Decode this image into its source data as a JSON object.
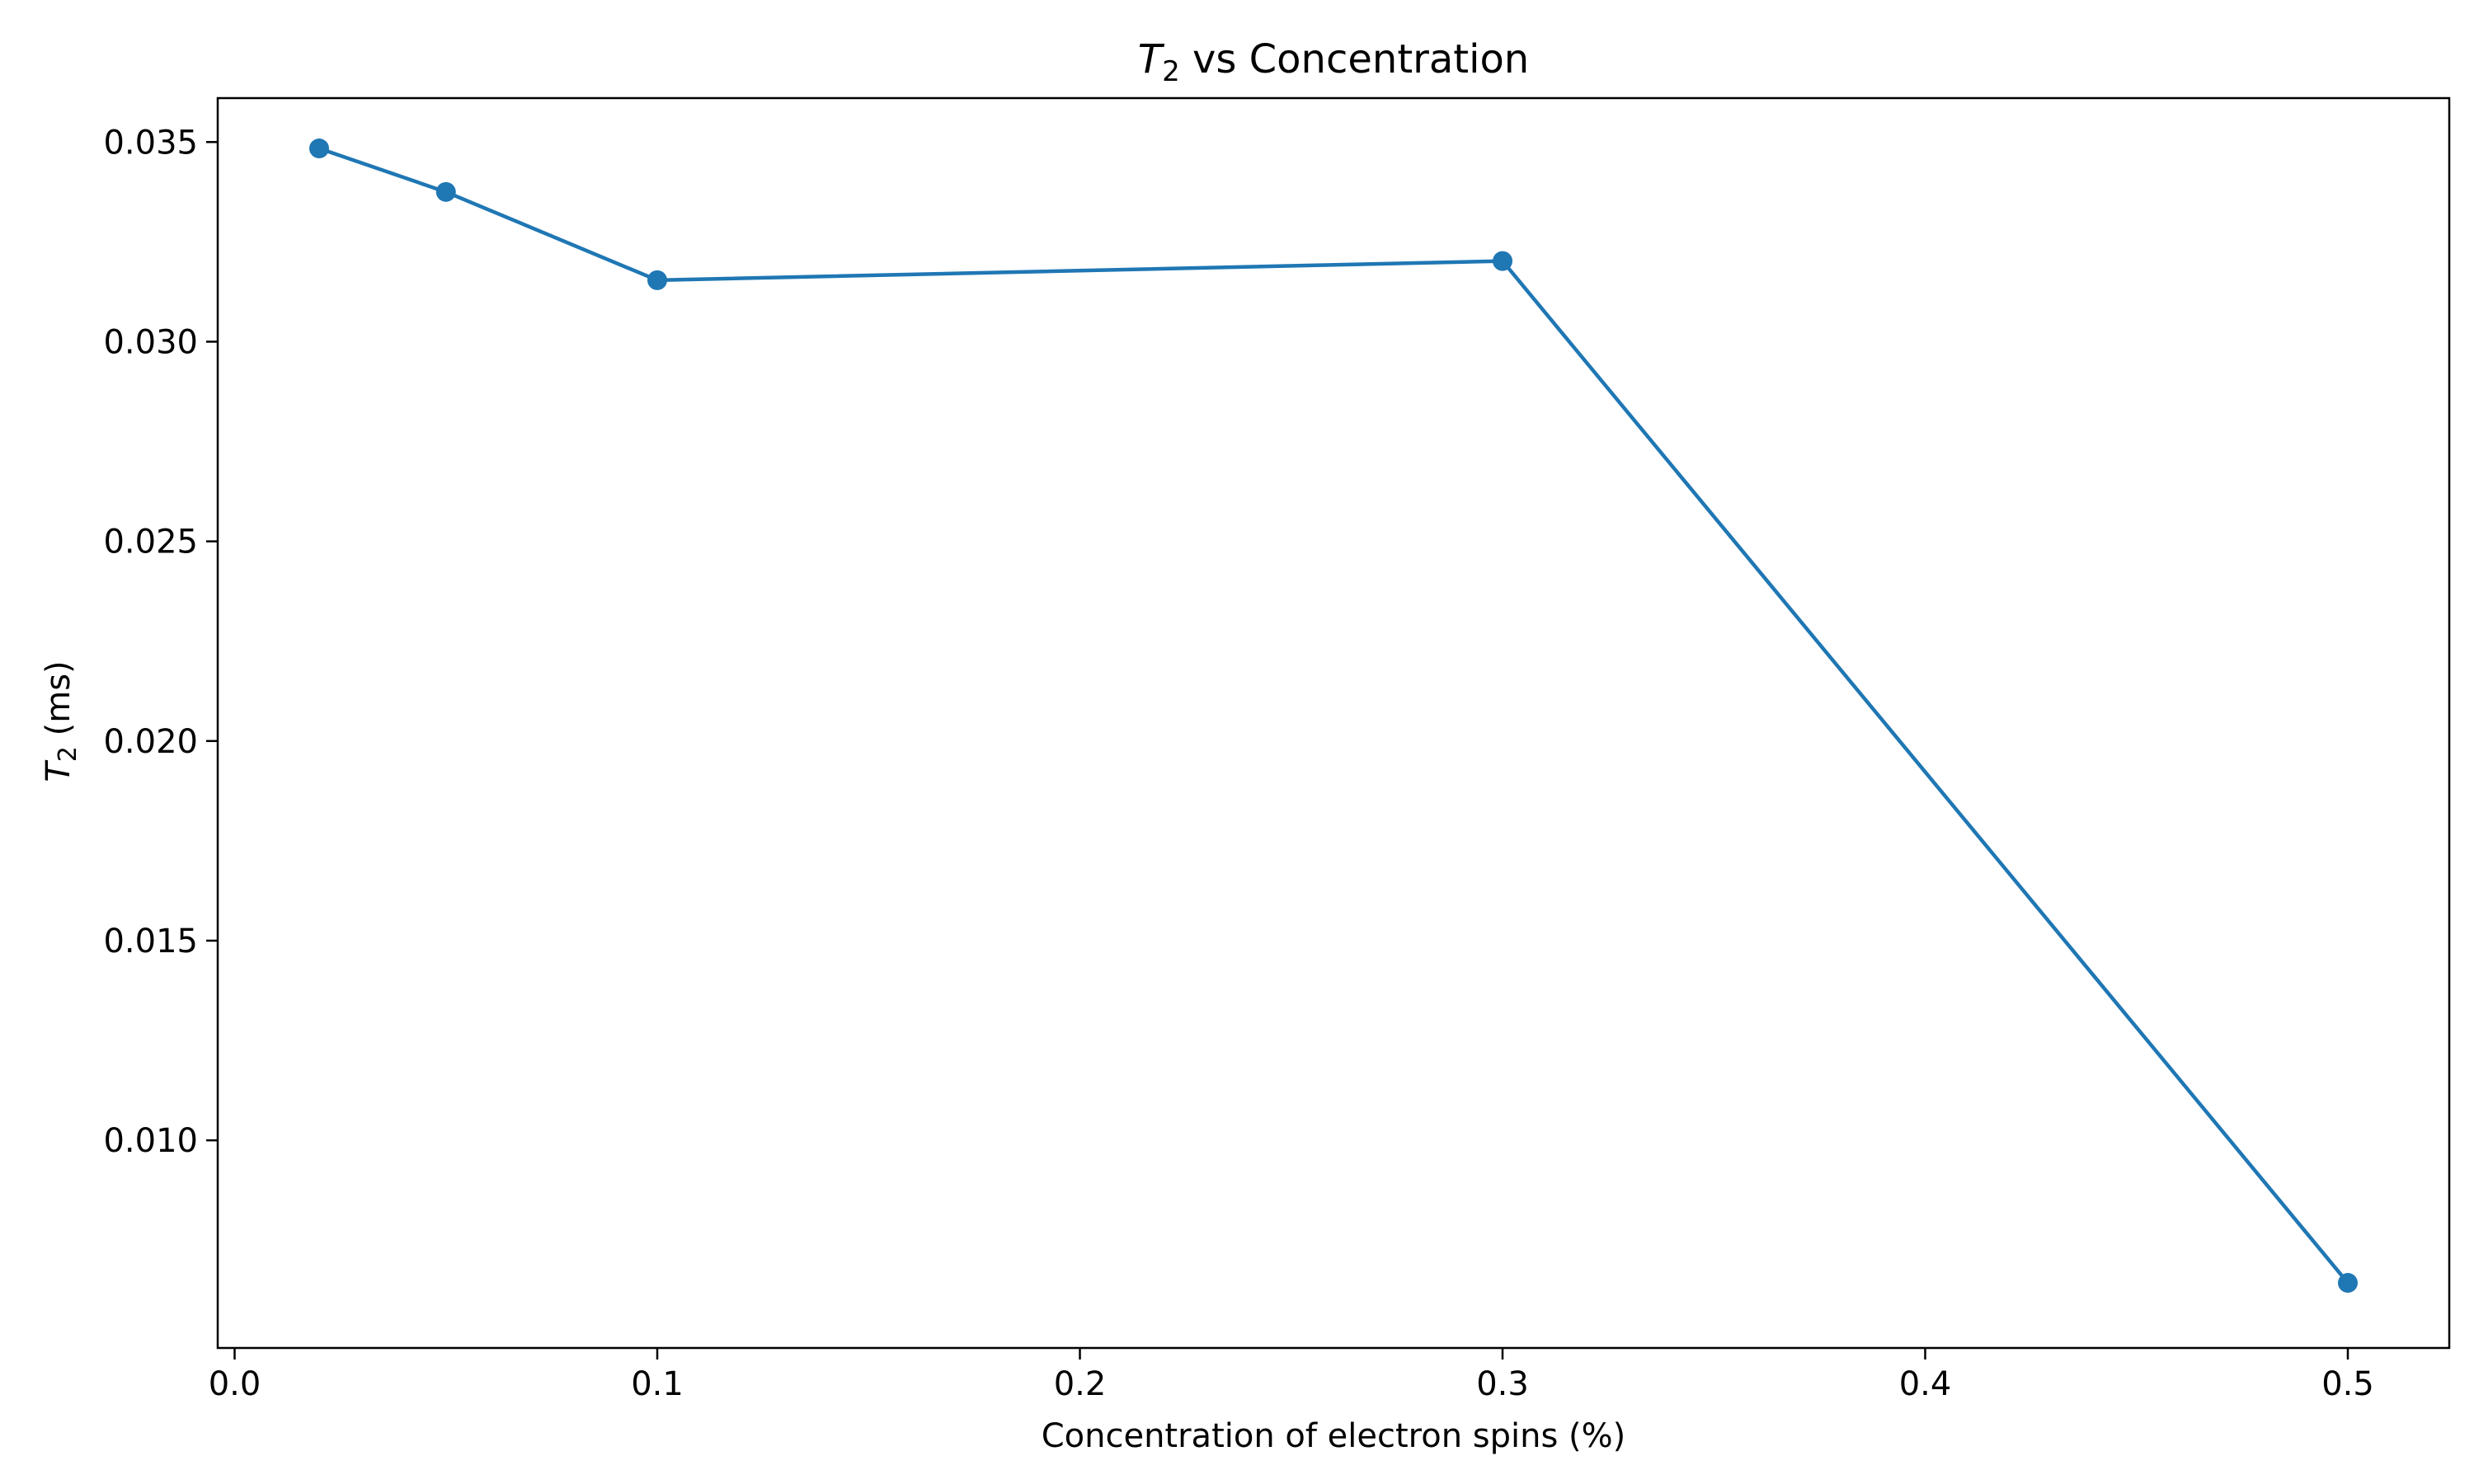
{
  "chart_data": {
    "type": "line",
    "title": {
      "prefix": "T",
      "sub": "2",
      "rest": " vs Concentration"
    },
    "xlabel": "Concentration of electron spins (%)",
    "ylabel": {
      "prefix": "T",
      "sub": "2",
      "rest": " (ms)"
    },
    "xlim": [
      -0.004,
      0.524
    ],
    "ylim": [
      0.0048,
      0.0361
    ],
    "xticks": [
      0.0,
      0.1,
      0.2,
      0.3,
      0.4,
      0.5
    ],
    "xtick_labels": [
      "0.0",
      "0.1",
      "0.2",
      "0.3",
      "0.4",
      "0.5"
    ],
    "yticks": [
      0.01,
      0.015,
      0.02,
      0.025,
      0.03,
      0.035
    ],
    "ytick_labels": [
      "0.010",
      "0.015",
      "0.020",
      "0.025",
      "0.030",
      "0.035"
    ],
    "grid": false,
    "series": [
      {
        "color": "#1f77b4",
        "marker": "circle",
        "x": [
          0.02,
          0.05,
          0.1,
          0.3,
          0.5
        ],
        "y": [
          0.03484,
          0.03375,
          0.03154,
          0.03202,
          0.00643
        ]
      }
    ]
  }
}
